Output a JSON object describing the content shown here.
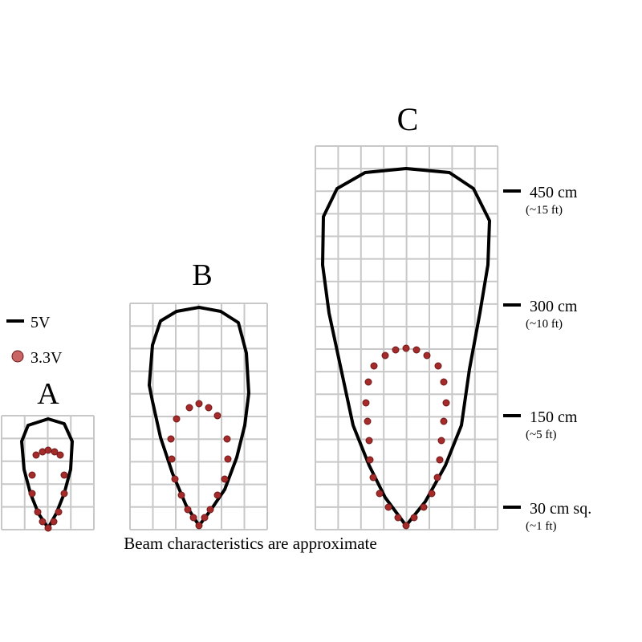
{
  "labels": {
    "a": "A",
    "b": "B",
    "c": "C"
  },
  "legend": [
    {
      "label": "5V"
    },
    {
      "label": "3.3V"
    }
  ],
  "scale": [
    {
      "distance": "450 cm",
      "feet": "(~15 ft)"
    },
    {
      "distance": "300 cm",
      "feet": "(~10 ft)"
    },
    {
      "distance": "150 cm",
      "feet": "(~5 ft)"
    },
    {
      "distance": "30 cm sq.",
      "feet": "(~1 ft)"
    }
  ],
  "caption": "Beam characteristics are approximate"
}
